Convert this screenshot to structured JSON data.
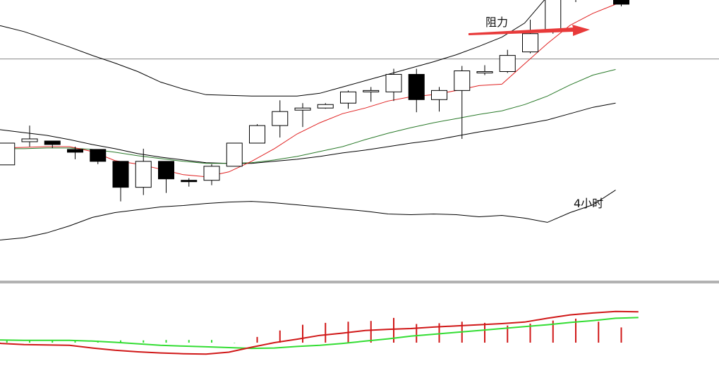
{
  "chart_data": {
    "type": "candlestick",
    "timeframe_label": "4小时",
    "annotation": {
      "text": "阻力",
      "arrow_color": "#e83a3a"
    },
    "y_range": [
      84,
      124
    ],
    "resistance_level": 115.6,
    "candles": [
      {
        "o": 100.5,
        "c": 103.6,
        "h": 103.6,
        "l": 100.5
      },
      {
        "o": 103.8,
        "c": 104.2,
        "h": 106.1,
        "l": 103.1
      },
      {
        "o": 103.9,
        "c": 103.4,
        "h": 103.9,
        "l": 102.9
      },
      {
        "o": 102.7,
        "c": 102.3,
        "h": 103.1,
        "l": 101.3
      },
      {
        "o": 102.7,
        "c": 101.0,
        "h": 102.7,
        "l": 100.6
      },
      {
        "o": 101.0,
        "c": 97.3,
        "h": 101.0,
        "l": 95.3
      },
      {
        "o": 97.3,
        "c": 101.0,
        "h": 102.8,
        "l": 96.2
      },
      {
        "o": 101.0,
        "c": 98.5,
        "h": 101.0,
        "l": 96.5
      },
      {
        "o": 98.3,
        "c": 98.1,
        "h": 98.6,
        "l": 97.4
      },
      {
        "o": 98.3,
        "c": 100.3,
        "h": 100.6,
        "l": 97.6
      },
      {
        "o": 100.3,
        "c": 103.6,
        "h": 103.6,
        "l": 100.3
      },
      {
        "o": 103.6,
        "c": 106.1,
        "h": 106.3,
        "l": 103.6
      },
      {
        "o": 106.1,
        "c": 108.1,
        "h": 109.7,
        "l": 104.4
      },
      {
        "o": 108.3,
        "c": 108.6,
        "h": 109.3,
        "l": 105.9
      },
      {
        "o": 108.6,
        "c": 109.1,
        "h": 109.3,
        "l": 108.5
      },
      {
        "o": 109.3,
        "c": 110.9,
        "h": 111.1,
        "l": 108.5
      },
      {
        "o": 110.9,
        "c": 111.1,
        "h": 111.6,
        "l": 109.5
      },
      {
        "o": 110.9,
        "c": 113.4,
        "h": 114.2,
        "l": 109.6
      },
      {
        "o": 113.4,
        "c": 109.8,
        "h": 114.2,
        "l": 108.0
      },
      {
        "o": 109.8,
        "c": 111.1,
        "h": 111.6,
        "l": 108.1
      },
      {
        "o": 111.1,
        "c": 113.9,
        "h": 114.6,
        "l": 104.2
      },
      {
        "o": 113.6,
        "c": 113.8,
        "h": 114.7,
        "l": 113.3
      },
      {
        "o": 113.8,
        "c": 116.1,
        "h": 116.9,
        "l": 113.6
      },
      {
        "o": 116.6,
        "c": 119.2,
        "h": 121.2,
        "l": 116.4
      },
      {
        "o": 119.5,
        "c": 128.4,
        "h": 130.1,
        "l": 119.2
      },
      {
        "o": 128.4,
        "c": 124.7,
        "h": 129.9,
        "l": 123.7
      },
      {
        "o": 124.9,
        "c": 125.4,
        "h": 126.0,
        "l": 124.3
      },
      {
        "o": 125.1,
        "c": 123.4,
        "h": 125.5,
        "l": 123.1
      }
    ],
    "overlays": {
      "bollinger_upper": [
        120.9,
        120.3,
        119.5,
        118.4,
        117.3,
        116.1,
        115.0,
        113.8,
        112.3,
        111.3,
        110.5,
        110.4,
        110.3,
        110.3,
        110.3,
        110.7,
        111.6,
        112.5,
        113.4,
        114.3,
        115.2,
        116.2,
        117.4,
        118.7,
        120.7,
        124.5,
        127.3,
        128.8,
        129.6
      ],
      "bollinger_middle": [
        105.9,
        105.5,
        105.1,
        104.7,
        104.1,
        103.4,
        102.8,
        102.1,
        101.6,
        101.2,
        100.8,
        100.7,
        100.7,
        101.0,
        101.3,
        101.7,
        102.2,
        102.6,
        103.1,
        103.6,
        104.0,
        104.6,
        105.2,
        105.7,
        106.3,
        106.9,
        107.8,
        108.7,
        109.3
      ],
      "bollinger_lower": [
        89.7,
        89.8,
        90.1,
        90.8,
        91.8,
        93.0,
        93.7,
        94.1,
        94.5,
        94.7,
        95.0,
        95.2,
        95.3,
        95.1,
        94.8,
        94.5,
        94.2,
        93.9,
        93.5,
        93.4,
        93.5,
        93.4,
        93.1,
        93.3,
        92.9,
        92.3,
        93.7,
        94.8,
        96.9
      ],
      "ma_fast_red": [
        102.6,
        102.9,
        103.0,
        103.1,
        103.1,
        102.4,
        101.1,
        100.6,
        99.9,
        99.1,
        98.8,
        99.5,
        101.0,
        102.8,
        104.9,
        106.5,
        107.8,
        108.6,
        109.6,
        110.2,
        110.5,
        111.1,
        111.8,
        112.0,
        114.9,
        117.8,
        120.4,
        122.1,
        123.4
      ],
      "ma_slow_green": [
        102.7,
        102.8,
        102.8,
        102.9,
        102.9,
        102.7,
        102.3,
        101.8,
        101.4,
        101.0,
        100.7,
        100.7,
        100.8,
        101.2,
        101.7,
        102.4,
        103.1,
        104.1,
        105.0,
        105.8,
        106.5,
        107.1,
        107.7,
        108.2,
        109.1,
        110.3,
        111.9,
        113.3,
        114.1
      ]
    },
    "macd": {
      "y_range": [
        -1,
        1.5
      ],
      "histogram": [
        0.05,
        0.05,
        0.05,
        0.05,
        0.05,
        0.06,
        0.06,
        0.07,
        0.07,
        0.07,
        -0.01,
        0.15,
        0.32,
        0.47,
        0.52,
        0.55,
        0.57,
        0.65,
        0.49,
        0.51,
        0.55,
        0.52,
        0.45,
        0.5,
        0.58,
        0.63,
        0.55,
        0.4
      ],
      "dif_red": [
        0.05,
        -0.02,
        -0.05,
        -0.06,
        -0.07,
        -0.14,
        -0.2,
        -0.24,
        -0.27,
        -0.29,
        -0.3,
        -0.25,
        -0.12,
        0.0,
        0.09,
        0.19,
        0.25,
        0.32,
        0.35,
        0.37,
        0.41,
        0.44,
        0.47,
        0.5,
        0.54,
        0.64,
        0.73,
        0.78,
        0.82,
        0.81
      ],
      "dea_green": [
        0.07,
        0.07,
        0.06,
        0.06,
        0.06,
        0.04,
        0.01,
        -0.03,
        -0.07,
        -0.09,
        -0.11,
        -0.13,
        -0.15,
        -0.14,
        -0.1,
        -0.07,
        -0.02,
        0.04,
        0.1,
        0.17,
        0.22,
        0.27,
        0.32,
        0.37,
        0.42,
        0.47,
        0.53,
        0.58,
        0.64,
        0.66
      ]
    },
    "colors": {
      "bull_body": "#ffffff",
      "bear_body": "#000000",
      "candle_edge": "#000000",
      "bollinger": "#000000",
      "ma_fast": "#e02020",
      "ma_slow": "#2a7a2a",
      "macd_dif": "#d01818",
      "macd_dea": "#33dd33",
      "hist_pos": "#d01818",
      "hist_neg": "#33dd33",
      "hline": "#888888"
    }
  }
}
